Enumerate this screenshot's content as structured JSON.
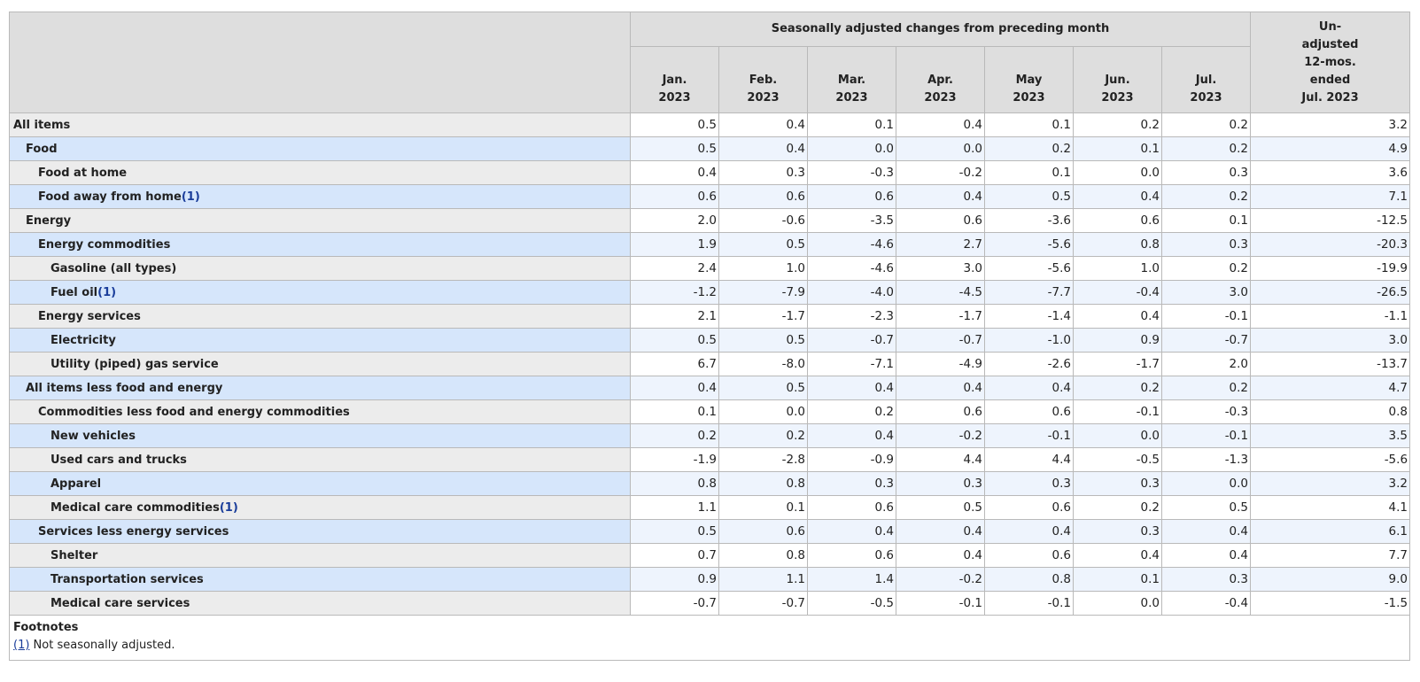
{
  "header": {
    "group_label": "Seasonally adjusted changes from preceding month",
    "months": [
      {
        "line1": "Jan.",
        "line2": "2023"
      },
      {
        "line1": "Feb.",
        "line2": "2023"
      },
      {
        "line1": "Mar.",
        "line2": "2023"
      },
      {
        "line1": "Apr.",
        "line2": "2023"
      },
      {
        "line1": "May",
        "line2": "2023"
      },
      {
        "line1": "Jun.",
        "line2": "2023"
      },
      {
        "line1": "Jul.",
        "line2": "2023"
      }
    ],
    "unadjusted": {
      "l1": "Un-",
      "l2": "adjusted",
      "l3": "12-mos.",
      "l4": "ended",
      "l5": "Jul. 2023"
    }
  },
  "rows": [
    {
      "label": "All items",
      "indent": 0,
      "footnote": "",
      "values": [
        "0.5",
        "0.4",
        "0.1",
        "0.4",
        "0.1",
        "0.2",
        "0.2",
        "3.2"
      ]
    },
    {
      "label": "Food",
      "indent": 1,
      "footnote": "",
      "values": [
        "0.5",
        "0.4",
        "0.0",
        "0.0",
        "0.2",
        "0.1",
        "0.2",
        "4.9"
      ]
    },
    {
      "label": "Food at home",
      "indent": 2,
      "footnote": "",
      "values": [
        "0.4",
        "0.3",
        "-0.3",
        "-0.2",
        "0.1",
        "0.0",
        "0.3",
        "3.6"
      ]
    },
    {
      "label": "Food away from home",
      "indent": 2,
      "footnote": "(1)",
      "values": [
        "0.6",
        "0.6",
        "0.6",
        "0.4",
        "0.5",
        "0.4",
        "0.2",
        "7.1"
      ]
    },
    {
      "label": "Energy",
      "indent": 1,
      "footnote": "",
      "values": [
        "2.0",
        "-0.6",
        "-3.5",
        "0.6",
        "-3.6",
        "0.6",
        "0.1",
        "-12.5"
      ]
    },
    {
      "label": "Energy commodities",
      "indent": 2,
      "footnote": "",
      "values": [
        "1.9",
        "0.5",
        "-4.6",
        "2.7",
        "-5.6",
        "0.8",
        "0.3",
        "-20.3"
      ]
    },
    {
      "label": "Gasoline (all types)",
      "indent": 3,
      "footnote": "",
      "values": [
        "2.4",
        "1.0",
        "-4.6",
        "3.0",
        "-5.6",
        "1.0",
        "0.2",
        "-19.9"
      ]
    },
    {
      "label": "Fuel oil",
      "indent": 3,
      "footnote": "(1)",
      "values": [
        "-1.2",
        "-7.9",
        "-4.0",
        "-4.5",
        "-7.7",
        "-0.4",
        "3.0",
        "-26.5"
      ]
    },
    {
      "label": "Energy services",
      "indent": 2,
      "footnote": "",
      "values": [
        "2.1",
        "-1.7",
        "-2.3",
        "-1.7",
        "-1.4",
        "0.4",
        "-0.1",
        "-1.1"
      ]
    },
    {
      "label": "Electricity",
      "indent": 3,
      "footnote": "",
      "values": [
        "0.5",
        "0.5",
        "-0.7",
        "-0.7",
        "-1.0",
        "0.9",
        "-0.7",
        "3.0"
      ]
    },
    {
      "label": "Utility (piped) gas service",
      "indent": 3,
      "footnote": "",
      "values": [
        "6.7",
        "-8.0",
        "-7.1",
        "-4.9",
        "-2.6",
        "-1.7",
        "2.0",
        "-13.7"
      ]
    },
    {
      "label": "All items less food and energy",
      "indent": 1,
      "footnote": "",
      "values": [
        "0.4",
        "0.5",
        "0.4",
        "0.4",
        "0.4",
        "0.2",
        "0.2",
        "4.7"
      ]
    },
    {
      "label": "Commodities less food and energy commodities",
      "indent": 2,
      "footnote": "",
      "values": [
        "0.1",
        "0.0",
        "0.2",
        "0.6",
        "0.6",
        "-0.1",
        "-0.3",
        "0.8"
      ]
    },
    {
      "label": "New vehicles",
      "indent": 3,
      "footnote": "",
      "values": [
        "0.2",
        "0.2",
        "0.4",
        "-0.2",
        "-0.1",
        "0.0",
        "-0.1",
        "3.5"
      ]
    },
    {
      "label": "Used cars and trucks",
      "indent": 3,
      "footnote": "",
      "values": [
        "-1.9",
        "-2.8",
        "-0.9",
        "4.4",
        "4.4",
        "-0.5",
        "-1.3",
        "-5.6"
      ]
    },
    {
      "label": "Apparel",
      "indent": 3,
      "footnote": "",
      "values": [
        "0.8",
        "0.8",
        "0.3",
        "0.3",
        "0.3",
        "0.3",
        "0.0",
        "3.2"
      ]
    },
    {
      "label": "Medical care commodities",
      "indent": 3,
      "footnote": "(1)",
      "values": [
        "1.1",
        "0.1",
        "0.6",
        "0.5",
        "0.6",
        "0.2",
        "0.5",
        "4.1"
      ]
    },
    {
      "label": "Services less energy services",
      "indent": 2,
      "footnote": "",
      "values": [
        "0.5",
        "0.6",
        "0.4",
        "0.4",
        "0.4",
        "0.3",
        "0.4",
        "6.1"
      ]
    },
    {
      "label": "Shelter",
      "indent": 3,
      "footnote": "",
      "values": [
        "0.7",
        "0.8",
        "0.6",
        "0.4",
        "0.6",
        "0.4",
        "0.4",
        "7.7"
      ]
    },
    {
      "label": "Transportation services",
      "indent": 3,
      "footnote": "",
      "values": [
        "0.9",
        "1.1",
        "1.4",
        "-0.2",
        "0.8",
        "0.1",
        "0.3",
        "9.0"
      ]
    },
    {
      "label": "Medical care services",
      "indent": 3,
      "footnote": "",
      "values": [
        "-0.7",
        "-0.7",
        "-0.5",
        "-0.1",
        "-0.1",
        "0.0",
        "-0.4",
        "-1.5"
      ]
    }
  ],
  "footnotes": {
    "title": "Footnotes",
    "items": [
      {
        "marker": "(1)",
        "text": " Not seasonally adjusted."
      }
    ]
  }
}
